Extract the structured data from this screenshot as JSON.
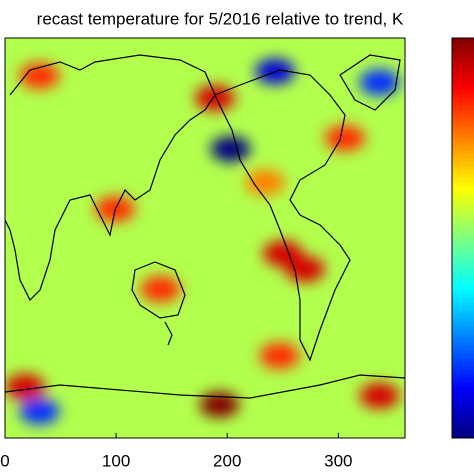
{
  "chart_data": {
    "type": "heatmap",
    "title": "recast temperature for 5/2016 relative to trend, K",
    "xlim": [
      0,
      360
    ],
    "xticks": [
      0,
      100,
      200,
      300
    ],
    "ylim": [
      -90,
      90
    ],
    "clim": [
      -3,
      3
    ],
    "colormap": "jet",
    "background_value": 0.3,
    "anomalies": {
      "lon": [
        189,
        203,
        250,
        270,
        243,
        337,
        306,
        140,
        99,
        31,
        247,
        18,
        193,
        31,
        337,
        234
      ],
      "lat": [
        63,
        40,
        -7,
        -14,
        75,
        70,
        45,
        -23,
        13,
        73,
        -53,
        -67,
        -75,
        -78,
        -71,
        25
      ],
      "values": [
        2.5,
        -3,
        2.5,
        2.5,
        -2.5,
        -2,
        2,
        2,
        2,
        2,
        2,
        2.5,
        3,
        -2,
        2.5,
        1.5
      ]
    }
  }
}
